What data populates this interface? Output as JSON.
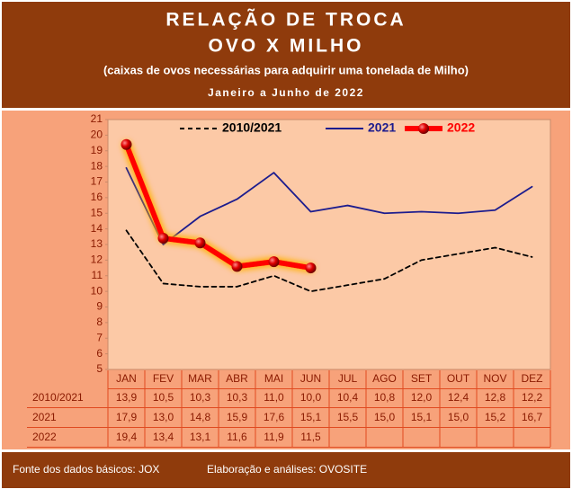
{
  "chart_data": {
    "type": "line",
    "title": "RELAÇÃO DE TROCA",
    "subtitle": "OVO X MILHO",
    "description": "(caixas de ovos necessárias para adquirir uma tonelada de Milho)",
    "period": "Janeiro a Junho de 2022",
    "categories": [
      "JAN",
      "FEV",
      "MAR",
      "ABR",
      "MAI",
      "JUN",
      "JUL",
      "AGO",
      "SET",
      "OUT",
      "NOV",
      "DEZ"
    ],
    "series": [
      {
        "name": "2010/2021",
        "color": "#000000",
        "style": "dashed",
        "values": [
          13.9,
          10.5,
          10.3,
          10.3,
          11.0,
          10.0,
          10.4,
          10.8,
          12.0,
          12.4,
          12.8,
          12.2
        ],
        "value_labels": [
          "13,9",
          "10,5",
          "10,3",
          "10,3",
          "11,0",
          "10,0",
          "10,4",
          "10,8",
          "12,0",
          "12,4",
          "12,8",
          "12,2"
        ]
      },
      {
        "name": "2021",
        "color": "#1c1c8e",
        "style": "solid",
        "values": [
          17.9,
          13.0,
          14.8,
          15.9,
          17.6,
          15.1,
          15.5,
          15.0,
          15.1,
          15.0,
          15.2,
          16.7
        ],
        "value_labels": [
          "17,9",
          "13,0",
          "14,8",
          "15,9",
          "17,6",
          "15,1",
          "15,5",
          "15,0",
          "15,1",
          "15,0",
          "15,2",
          "16,7"
        ]
      },
      {
        "name": "2022",
        "color": "#ff0000",
        "style": "marker",
        "values": [
          19.4,
          13.4,
          13.1,
          11.6,
          11.9,
          11.5,
          null,
          null,
          null,
          null,
          null,
          null
        ],
        "value_labels": [
          "19,4",
          "13,4",
          "13,1",
          "11,6",
          "11,9",
          "11,5",
          null,
          null,
          null,
          null,
          null,
          null
        ]
      }
    ],
    "ylim": [
      5,
      21
    ],
    "yticks": [
      5,
      6,
      7,
      8,
      9,
      10,
      11,
      12,
      13,
      14,
      15,
      16,
      17,
      18,
      19,
      20,
      21
    ],
    "grid": false,
    "source": "Fonte dos dados básicos: JOX",
    "credit": "Elaboração e análises: OVOSITE"
  }
}
